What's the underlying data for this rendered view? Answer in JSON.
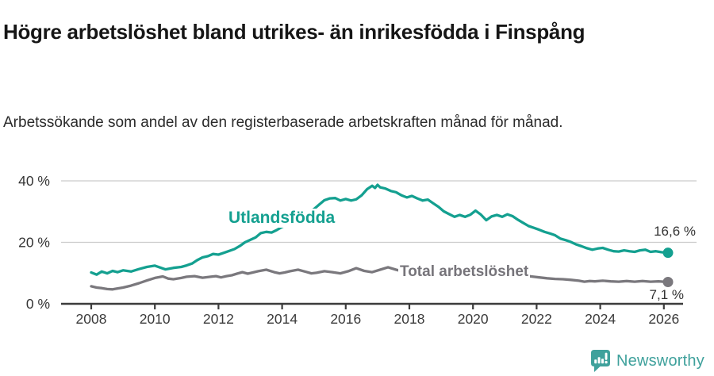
{
  "header": {
    "title": "Högre arbetslöshet bland utrikes- än inrikesfödda i Finspång",
    "subtitle": "Arbetssökande som andel av den registerbaserade arbetskraften månad för månad."
  },
  "chart_data": {
    "type": "line",
    "title": "Högre arbetslöshet bland utrikes- än inrikesfödda i Finspång",
    "subtitle": "Arbetssökande som andel av den registerbaserade arbetskraften månad för månad.",
    "grid": "horizontal",
    "legend": "inline-labels",
    "colors": {
      "foreign_born_line": "#14a090",
      "total_line": "#7a787d",
      "gridline": "#cccccc",
      "axis": "#3c3c3c",
      "tick_text": "#3a3a3a"
    },
    "x_axis": {
      "unit": "year",
      "ticks": [
        2008,
        2010,
        2012,
        2014,
        2016,
        2018,
        2020,
        2022,
        2024,
        2026
      ]
    },
    "y_axis": {
      "unit": "%",
      "ylim": [
        0,
        42
      ],
      "tick_values": [
        0,
        20,
        40
      ],
      "tick_labels": [
        "0 %",
        "20 %",
        "40 %"
      ],
      "gridline_values": [
        20,
        40
      ]
    },
    "series": [
      {
        "name": "Utlandsfödda",
        "color": "#14a090",
        "end_label": "16,6 %",
        "end_value": 16.6,
        "points": [
          [
            2008.0,
            10.2
          ],
          [
            2008.17,
            9.5
          ],
          [
            2008.33,
            10.5
          ],
          [
            2008.5,
            9.9
          ],
          [
            2008.67,
            10.7
          ],
          [
            2008.83,
            10.3
          ],
          [
            2009.0,
            10.9
          ],
          [
            2009.25,
            10.5
          ],
          [
            2009.5,
            11.3
          ],
          [
            2009.75,
            12.0
          ],
          [
            2010.0,
            12.4
          ],
          [
            2010.17,
            11.8
          ],
          [
            2010.33,
            11.2
          ],
          [
            2010.58,
            11.7
          ],
          [
            2010.83,
            12.0
          ],
          [
            2011.0,
            12.5
          ],
          [
            2011.17,
            13.1
          ],
          [
            2011.33,
            14.2
          ],
          [
            2011.5,
            15.1
          ],
          [
            2011.67,
            15.5
          ],
          [
            2011.83,
            16.2
          ],
          [
            2012.0,
            16.0
          ],
          [
            2012.17,
            16.6
          ],
          [
            2012.33,
            17.2
          ],
          [
            2012.5,
            17.8
          ],
          [
            2012.67,
            18.8
          ],
          [
            2012.83,
            20.0
          ],
          [
            2013.0,
            20.8
          ],
          [
            2013.17,
            21.6
          ],
          [
            2013.33,
            23.0
          ],
          [
            2013.5,
            23.4
          ],
          [
            2013.67,
            23.2
          ],
          [
            2013.83,
            24.0
          ],
          [
            2014.0,
            25.0
          ],
          [
            2014.25,
            26.1
          ],
          [
            2014.5,
            27.3
          ],
          [
            2014.75,
            28.8
          ],
          [
            2015.0,
            30.8
          ],
          [
            2015.17,
            32.3
          ],
          [
            2015.33,
            33.7
          ],
          [
            2015.5,
            34.3
          ],
          [
            2015.67,
            34.4
          ],
          [
            2015.83,
            33.6
          ],
          [
            2016.0,
            34.1
          ],
          [
            2016.17,
            33.6
          ],
          [
            2016.33,
            34.0
          ],
          [
            2016.5,
            35.3
          ],
          [
            2016.67,
            37.3
          ],
          [
            2016.83,
            38.4
          ],
          [
            2016.92,
            37.7
          ],
          [
            2017.0,
            38.7
          ],
          [
            2017.08,
            37.9
          ],
          [
            2017.25,
            37.5
          ],
          [
            2017.42,
            36.7
          ],
          [
            2017.58,
            36.3
          ],
          [
            2017.75,
            35.3
          ],
          [
            2017.92,
            34.6
          ],
          [
            2018.08,
            35.1
          ],
          [
            2018.25,
            34.3
          ],
          [
            2018.42,
            33.6
          ],
          [
            2018.58,
            33.9
          ],
          [
            2018.75,
            32.7
          ],
          [
            2018.92,
            31.5
          ],
          [
            2019.08,
            30.1
          ],
          [
            2019.25,
            29.2
          ],
          [
            2019.42,
            28.3
          ],
          [
            2019.58,
            28.9
          ],
          [
            2019.75,
            28.3
          ],
          [
            2019.92,
            29.0
          ],
          [
            2020.08,
            30.3
          ],
          [
            2020.25,
            29.0
          ],
          [
            2020.42,
            27.2
          ],
          [
            2020.58,
            28.4
          ],
          [
            2020.75,
            28.9
          ],
          [
            2020.92,
            28.3
          ],
          [
            2021.08,
            29.1
          ],
          [
            2021.25,
            28.5
          ],
          [
            2021.42,
            27.3
          ],
          [
            2021.58,
            26.3
          ],
          [
            2021.75,
            25.3
          ],
          [
            2021.92,
            24.7
          ],
          [
            2022.08,
            24.1
          ],
          [
            2022.25,
            23.4
          ],
          [
            2022.42,
            22.9
          ],
          [
            2022.58,
            22.3
          ],
          [
            2022.75,
            21.2
          ],
          [
            2022.92,
            20.7
          ],
          [
            2023.08,
            20.1
          ],
          [
            2023.25,
            19.3
          ],
          [
            2023.42,
            18.7
          ],
          [
            2023.58,
            18.1
          ],
          [
            2023.75,
            17.6
          ],
          [
            2023.92,
            18.0
          ],
          [
            2024.08,
            18.2
          ],
          [
            2024.25,
            17.6
          ],
          [
            2024.42,
            17.1
          ],
          [
            2024.58,
            17.0
          ],
          [
            2024.75,
            17.4
          ],
          [
            2024.92,
            17.1
          ],
          [
            2025.08,
            16.9
          ],
          [
            2025.25,
            17.4
          ],
          [
            2025.42,
            17.6
          ],
          [
            2025.58,
            16.9
          ],
          [
            2025.75,
            17.1
          ],
          [
            2025.92,
            16.8
          ],
          [
            2026.13,
            16.6
          ]
        ]
      },
      {
        "name": "Total arbetslöshet",
        "color": "#7a787d",
        "end_label": "7,1 %",
        "end_value": 7.1,
        "points": [
          [
            2008.0,
            5.7
          ],
          [
            2008.17,
            5.3
          ],
          [
            2008.33,
            5.1
          ],
          [
            2008.5,
            4.8
          ],
          [
            2008.67,
            4.7
          ],
          [
            2008.83,
            5.0
          ],
          [
            2009.0,
            5.3
          ],
          [
            2009.25,
            5.9
          ],
          [
            2009.5,
            6.7
          ],
          [
            2009.75,
            7.6
          ],
          [
            2010.0,
            8.4
          ],
          [
            2010.25,
            8.9
          ],
          [
            2010.42,
            8.2
          ],
          [
            2010.58,
            8.0
          ],
          [
            2010.83,
            8.4
          ],
          [
            2011.0,
            8.8
          ],
          [
            2011.25,
            9.0
          ],
          [
            2011.5,
            8.5
          ],
          [
            2011.75,
            8.8
          ],
          [
            2011.92,
            9.0
          ],
          [
            2012.08,
            8.6
          ],
          [
            2012.25,
            9.0
          ],
          [
            2012.42,
            9.3
          ],
          [
            2012.58,
            9.8
          ],
          [
            2012.75,
            10.3
          ],
          [
            2012.92,
            9.8
          ],
          [
            2013.08,
            10.2
          ],
          [
            2013.25,
            10.6
          ],
          [
            2013.5,
            11.1
          ],
          [
            2013.75,
            10.3
          ],
          [
            2013.92,
            9.9
          ],
          [
            2014.08,
            10.2
          ],
          [
            2014.25,
            10.6
          ],
          [
            2014.5,
            11.1
          ],
          [
            2014.75,
            10.4
          ],
          [
            2014.92,
            9.9
          ],
          [
            2015.08,
            10.1
          ],
          [
            2015.33,
            10.6
          ],
          [
            2015.58,
            10.3
          ],
          [
            2015.83,
            9.9
          ],
          [
            2016.08,
            10.6
          ],
          [
            2016.33,
            11.6
          ],
          [
            2016.58,
            10.7
          ],
          [
            2016.83,
            10.3
          ],
          [
            2017.08,
            11.1
          ],
          [
            2017.33,
            11.9
          ],
          [
            2017.58,
            11.1
          ],
          [
            2017.83,
            10.4
          ],
          [
            2018.08,
            10.7
          ],
          [
            2018.33,
            10.3
          ],
          [
            2018.58,
            9.9
          ],
          [
            2018.83,
            10.1
          ],
          [
            2019.08,
            9.8
          ],
          [
            2019.33,
            9.6
          ],
          [
            2019.58,
            9.9
          ],
          [
            2019.83,
            9.7
          ],
          [
            2020.08,
            10.0
          ],
          [
            2020.33,
            10.4
          ],
          [
            2020.58,
            10.0
          ],
          [
            2020.83,
            10.2
          ],
          [
            2021.08,
            10.0
          ],
          [
            2021.33,
            9.7
          ],
          [
            2021.58,
            9.3
          ],
          [
            2021.83,
            8.9
          ],
          [
            2022.08,
            8.6
          ],
          [
            2022.33,
            8.3
          ],
          [
            2022.58,
            8.1
          ],
          [
            2022.83,
            8.0
          ],
          [
            2023.08,
            7.8
          ],
          [
            2023.33,
            7.5
          ],
          [
            2023.5,
            7.2
          ],
          [
            2023.67,
            7.4
          ],
          [
            2023.83,
            7.3
          ],
          [
            2024.08,
            7.5
          ],
          [
            2024.33,
            7.3
          ],
          [
            2024.58,
            7.2
          ],
          [
            2024.83,
            7.4
          ],
          [
            2025.08,
            7.2
          ],
          [
            2025.33,
            7.4
          ],
          [
            2025.58,
            7.2
          ],
          [
            2025.83,
            7.3
          ],
          [
            2026.13,
            7.1
          ]
        ]
      }
    ]
  },
  "footer": {
    "brand": "Newsworthy",
    "brand_color": "#3fa19c",
    "logo_icon": "speech-bubble-bar-chart-icon"
  }
}
